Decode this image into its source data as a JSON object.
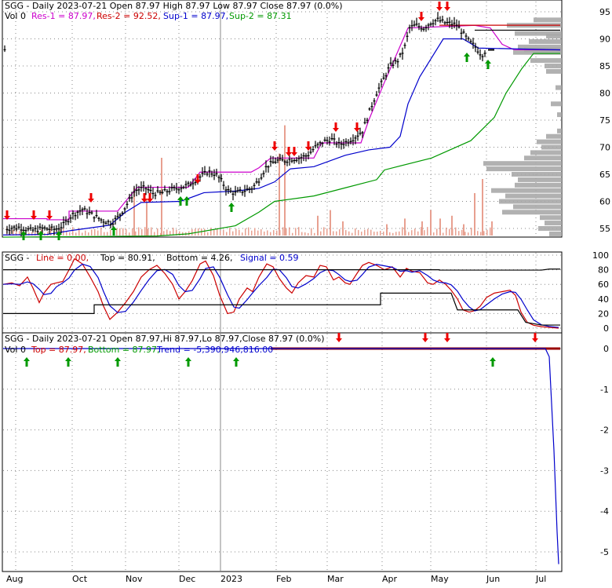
{
  "symbol": "SGG",
  "colors": {
    "price": "#000000",
    "res1": "#cc00cc",
    "res2": "#cc0000",
    "sup1": "#0000cc",
    "sup2": "#009900",
    "volume": "#e8a090",
    "grid": "#888888",
    "volume_profile": "#a8a8a8",
    "down_arrow": "#ee0000",
    "up_arrow": "#009900",
    "trend": "#0000cc",
    "band": "#990000"
  },
  "panel1": {
    "legend": {
      "line1": "SGG - Daily 2023-07-21 Open 87.97  High 87.97  Low 87.97  Close 87.97 (0.0%)",
      "vol": "Vol 0",
      "res1": "Res-1 = 87.97,",
      "res2": "Res-2 = 92.52,",
      "sup1": "Sup-1 = 87.97,",
      "sup2": "Sup-2 = 87.31"
    },
    "y_ticks": [
      "95",
      "90",
      "85",
      "80",
      "75",
      "70",
      "65",
      "60",
      "55"
    ]
  },
  "panel2": {
    "legend": {
      "sym": "SGG - ",
      "line": "Line = 0.00,",
      "top": "Top = 80.91,",
      "bottom": "Bottom = 4.26,",
      "signal": "Signal = 0.59"
    },
    "y_ticks": [
      "100",
      "80",
      "60",
      "40",
      "20",
      "0"
    ]
  },
  "panel3": {
    "legend": {
      "line1": "SGG - Daily 2023-07-21 Open 87.97,Hi 87.97,Lo 87.97,Close 87.97 (0.0%)",
      "vol": "Vol 0",
      "top": "Top = 87.97,",
      "bottom": "Bottom = 87.97,",
      "trend": "Trend = -5,390,946,816.00"
    },
    "y_ticks": [
      "0",
      "-1",
      "-2",
      "-3",
      "-4",
      "-5"
    ]
  },
  "x_labels": [
    "Aug",
    "Oct",
    "Nov",
    "Dec",
    "2023",
    "Feb",
    "Mar",
    "Apr",
    "May",
    "Jun",
    "Jul"
  ],
  "chart_data": [
    {
      "type": "line",
      "title": "SGG - Daily 2023-07-21",
      "x": [
        "2022-08",
        "2022-09",
        "2022-10",
        "2022-11",
        "2022-12",
        "2023-01",
        "2023-02",
        "2023-03",
        "2023-04",
        "2023-05",
        "2023-06",
        "2023-07"
      ],
      "series": [
        {
          "name": "Close",
          "values": [
            54.5,
            54.8,
            57.5,
            62.0,
            63.5,
            62.5,
            67.5,
            70.5,
            82.0,
            93.0,
            88.0,
            87.97
          ]
        },
        {
          "name": "Res-1",
          "values": [
            56.5,
            56.5,
            58.0,
            62.5,
            65.0,
            65.0,
            68.0,
            71.0,
            85.0,
            92.5,
            92.0,
            87.97
          ]
        },
        {
          "name": "Res-2",
          "values": [
            null,
            null,
            null,
            null,
            null,
            null,
            null,
            null,
            null,
            92.52,
            92.52,
            92.52
          ]
        },
        {
          "name": "Sup-1",
          "values": [
            54.0,
            54.0,
            55.0,
            59.5,
            62.0,
            62.0,
            66.0,
            68.0,
            70.0,
            86.0,
            90.0,
            87.97
          ]
        },
        {
          "name": "Sup-2",
          "values": [
            53.5,
            53.5,
            54.0,
            55.0,
            55.5,
            56.0,
            60.0,
            66.0,
            67.5,
            71.0,
            75.0,
            87.31
          ]
        }
      ],
      "ylim": [
        53,
        97
      ]
    },
    {
      "type": "line",
      "x": [
        "2022-08",
        "2022-09",
        "2022-10",
        "2022-11",
        "2022-12",
        "2023-01",
        "2023-02",
        "2023-03",
        "2023-04",
        "2023-05",
        "2023-06",
        "2023-07"
      ],
      "series": [
        {
          "name": "Line",
          "values": [
            60,
            40,
            92,
            15,
            55,
            70,
            20,
            85,
            88,
            60,
            30,
            0
          ]
        },
        {
          "name": "Top",
          "values": [
            80,
            80,
            80,
            80,
            80,
            80,
            80,
            80,
            80,
            80,
            80,
            80.91
          ]
        },
        {
          "name": "Bottom",
          "values": [
            20,
            20,
            20,
            32,
            32,
            32,
            32,
            32,
            48,
            48,
            48,
            4.26
          ]
        },
        {
          "name": "Signal",
          "values": [
            55,
            45,
            85,
            20,
            50,
            65,
            25,
            80,
            85,
            62,
            35,
            0.59
          ]
        }
      ],
      "ylim": [
        0,
        100
      ]
    },
    {
      "type": "line",
      "x": [
        "2022-08",
        "2023-06",
        "2023-07-10",
        "2023-07-21"
      ],
      "series": [
        {
          "name": "Trend",
          "values": [
            0,
            0,
            0,
            -5.3
          ]
        }
      ],
      "ylim": [
        -5.5,
        0.2
      ]
    }
  ]
}
